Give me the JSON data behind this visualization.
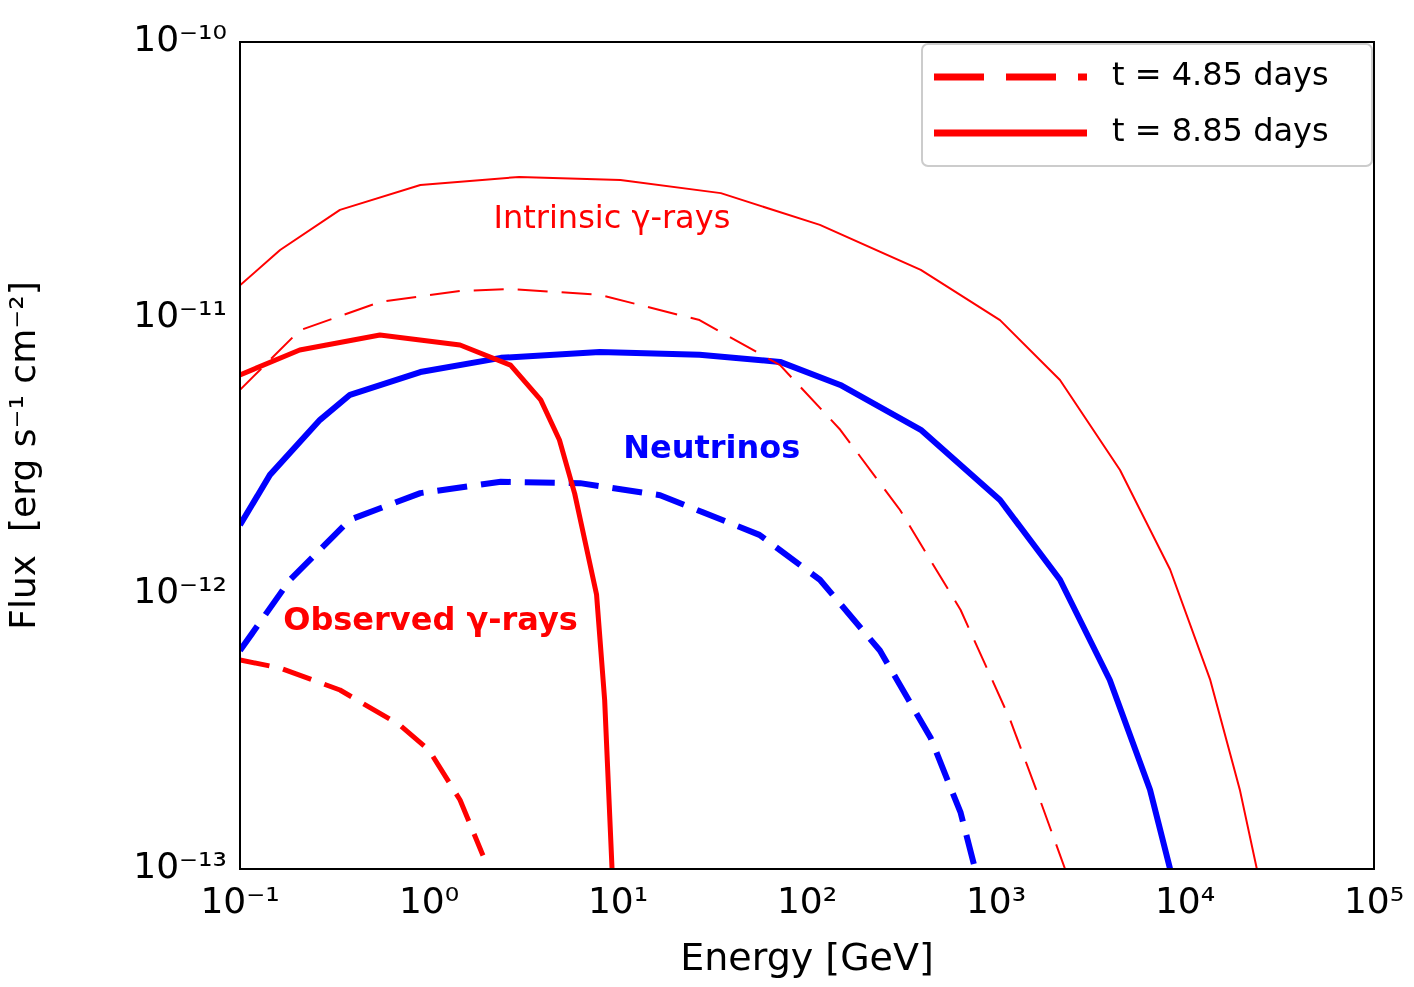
{
  "chart_data": {
    "type": "line",
    "xlabel": "Energy [GeV]",
    "ylabel": "Flux  [erg s⁻¹ cm⁻²]",
    "log": "xy",
    "grid": false,
    "legend": "top right",
    "xlim": [
      0.1,
      100000
    ],
    "ylim": [
      1e-13,
      1e-10
    ],
    "xticks": [
      {
        "value": 0.1,
        "label": "10⁻¹"
      },
      {
        "value": 1,
        "label": "10⁰"
      },
      {
        "value": 10,
        "label": "10¹"
      },
      {
        "value": 100,
        "label": "10²"
      },
      {
        "value": 1000,
        "label": "10³"
      },
      {
        "value": 10000,
        "label": "10⁴"
      },
      {
        "value": 100000,
        "label": "10⁵"
      }
    ],
    "yticks": [
      {
        "value": 1e-13,
        "label": "10⁻¹³"
      },
      {
        "value": 1e-12,
        "label": "10⁻¹²"
      },
      {
        "value": 1e-11,
        "label": "10⁻¹¹"
      },
      {
        "value": 1e-10,
        "label": "10⁻¹⁰"
      }
    ],
    "series": [
      {
        "color": "#ff0000",
        "line_style": "solid",
        "x": [
          0.1,
          0.163,
          0.338,
          0.9,
          3.0,
          10.3,
          35,
          117,
          400,
          1050,
          2180,
          4530,
          8340,
          13600,
          19500,
          24000
        ],
        "values": [
          1.31e-11,
          1.76e-11,
          2.46e-11,
          3.03e-11,
          3.24e-11,
          3.16e-11,
          2.83e-11,
          2.17e-11,
          1.49e-11,
          9.8e-12,
          5.94e-12,
          2.8e-12,
          1.22e-12,
          4.85e-13,
          1.94e-13,
          1e-13
        ]
      },
      {
        "color": "#ff0000",
        "line_style": "dashed",
        "x": [
          0.1,
          0.207,
          0.55,
          1.46,
          2.7,
          8.0,
          27,
          72,
          150,
          310,
          650,
          1190,
          1710,
          2320
        ],
        "values": [
          5.47e-12,
          9e-12,
          1.14e-11,
          1.25e-11,
          1.27e-11,
          1.21e-11,
          9.8e-12,
          6.73e-12,
          3.92e-12,
          2.01e-12,
          8.7e-13,
          3.47e-13,
          1.78e-13,
          1e-13
        ]
      },
      {
        "name": "t = 8.85 days",
        "color": "#ff0000",
        "line_style": "solid",
        "x": [
          0.1,
          0.207,
          0.55,
          1.46,
          2.7,
          3.9,
          4.9,
          5.9,
          7.7,
          8.5,
          9.3
        ],
        "values": [
          6.2e-12,
          7.63e-12,
          8.65e-12,
          7.96e-12,
          6.73e-12,
          5.03e-12,
          3.6e-12,
          2.3e-12,
          9.9e-13,
          4.1e-13,
          1e-13
        ]
      },
      {
        "name": "t = 4.85 days",
        "color": "#ff0000",
        "line_style": "dashed",
        "x": [
          0.1,
          0.163,
          0.338,
          0.7,
          1.0,
          1.46,
          1.93
        ],
        "values": [
          5.73e-13,
          5.36e-13,
          4.46e-13,
          3.33e-13,
          2.7e-13,
          1.78e-13,
          1.12e-13
        ]
      },
      {
        "color": "#0000ff",
        "line_style": "solid",
        "x": [
          0.1,
          0.144,
          0.265,
          0.382,
          0.9,
          2.4,
          8.0,
          27,
          72,
          150,
          400,
          1050,
          2180,
          4000,
          6530,
          8340
        ],
        "values": [
          1.77e-12,
          2.69e-12,
          4.26e-12,
          5.25e-12,
          6.35e-12,
          7.15e-12,
          7.51e-12,
          7.33e-12,
          6.91e-12,
          5.7e-12,
          3.92e-12,
          2.18e-12,
          1.12e-12,
          4.85e-13,
          1.94e-13,
          1e-13
        ]
      },
      {
        "color": "#0000ff",
        "line_style": "dashed",
        "x": [
          0.1,
          0.184,
          0.382,
          0.9,
          2.4,
          6.3,
          16.7,
          56,
          117,
          243,
          450,
          650,
          775
        ],
        "values": [
          6.2e-13,
          1.12e-12,
          1.85e-12,
          2.31e-12,
          2.54e-12,
          2.51e-12,
          2.27e-12,
          1.63e-12,
          1.12e-12,
          6.2e-13,
          3e-13,
          1.6e-13,
          1e-13
        ]
      }
    ],
    "annotations": [
      "Intrinsic γ-rays",
      "Neutrinos",
      "Observed γ-rays"
    ]
  }
}
